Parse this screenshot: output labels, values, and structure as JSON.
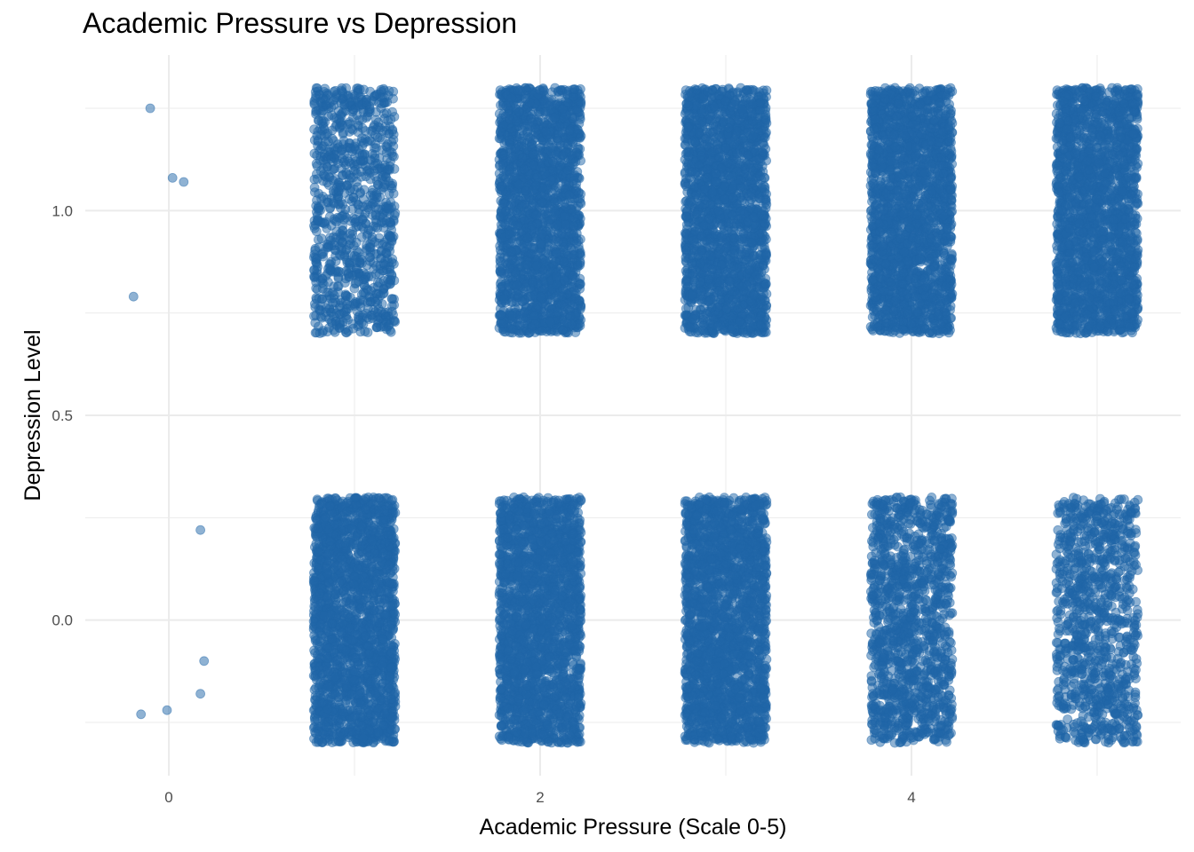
{
  "chart_data": {
    "type": "scatter",
    "title": "Academic Pressure vs Depression",
    "xlabel": "Academic Pressure (Scale 0-5)",
    "ylabel": "Depression Level",
    "x_ticks": [
      0,
      2,
      4
    ],
    "y_ticks": [
      0.0,
      0.5,
      1.0
    ],
    "y_tick_labels": [
      "0.0",
      "0.5",
      "1.0"
    ],
    "xlim": [
      -0.45,
      5.45
    ],
    "ylim": [
      -0.38,
      1.38
    ],
    "jitter": {
      "x": 0.22,
      "y": 0.3
    },
    "point_color": "#1f65a8",
    "point_alpha": 0.5,
    "grid": true,
    "legend": "none",
    "series": [
      {
        "x": 0,
        "depression": 1,
        "count": 4,
        "jittered_points": [
          [
            -0.1,
            1.25
          ],
          [
            0.02,
            1.08
          ],
          [
            0.08,
            1.07
          ],
          [
            -0.19,
            0.79
          ]
        ]
      },
      {
        "x": 0,
        "depression": 0,
        "count": 5,
        "jittered_points": [
          [
            0.17,
            0.22
          ],
          [
            0.19,
            -0.1
          ],
          [
            0.17,
            -0.18
          ],
          [
            -0.15,
            -0.23
          ],
          [
            -0.01,
            -0.22
          ]
        ]
      },
      {
        "x": 1,
        "depression": 0,
        "count": 4800
      },
      {
        "x": 1,
        "depression": 1,
        "count": 1000
      },
      {
        "x": 2,
        "depression": 0,
        "count": 3400
      },
      {
        "x": 2,
        "depression": 1,
        "count": 2700
      },
      {
        "x": 3,
        "depression": 0,
        "count": 3500
      },
      {
        "x": 3,
        "depression": 1,
        "count": 4000
      },
      {
        "x": 4,
        "depression": 0,
        "count": 1300
      },
      {
        "x": 4,
        "depression": 1,
        "count": 3800
      },
      {
        "x": 5,
        "depression": 0,
        "count": 1000
      },
      {
        "x": 5,
        "depression": 1,
        "count": 4700
      }
    ]
  }
}
